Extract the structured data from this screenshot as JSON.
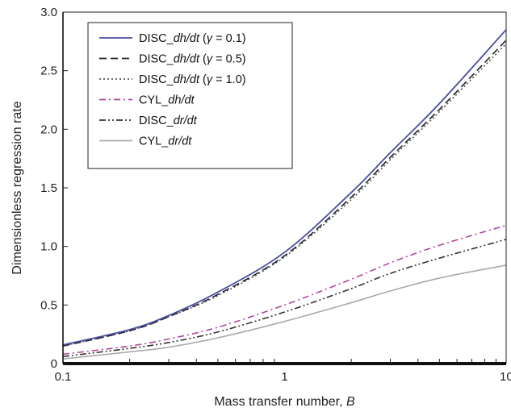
{
  "chart_data": {
    "type": "line",
    "xlabel": "Mass transfer number, B",
    "ylabel": "Dimensionless regression rate",
    "xscale": "log",
    "xlim": [
      0.1,
      10
    ],
    "ylim": [
      0,
      3.0
    ],
    "x_ticks": [
      0.1,
      1,
      10
    ],
    "x_tick_labels": [
      "0.1",
      "1",
      "10"
    ],
    "y_ticks": [
      0,
      0.5,
      1.0,
      1.5,
      2.0,
      2.5,
      3.0
    ],
    "y_tick_labels": [
      "0",
      "0.5",
      "1.0",
      "1.5",
      "2.0",
      "2.5",
      "3.0"
    ],
    "grid": false,
    "legend_position": "top-left",
    "series": [
      {
        "name": "DISC_dh/dt (γ = 0.1)",
        "label_parts": [
          "DISC_",
          "dh/dt",
          " (",
          "γ",
          " = 0.1)"
        ],
        "color": "#4a4ea0",
        "style": "solid",
        "x": [
          0.1,
          0.2,
          0.3,
          0.5,
          1,
          2,
          3,
          5,
          10
        ],
        "y": [
          0.16,
          0.29,
          0.41,
          0.61,
          0.95,
          1.46,
          1.8,
          2.22,
          2.85
        ]
      },
      {
        "name": "DISC_dh/dt (γ = 0.5)",
        "label_parts": [
          "DISC_",
          "dh/dt",
          " (",
          "γ",
          " = 0.5)"
        ],
        "color": "#222222",
        "style": "dashed",
        "x": [
          0.1,
          0.2,
          0.3,
          0.5,
          1,
          2,
          3,
          5,
          10
        ],
        "y": [
          0.15,
          0.28,
          0.4,
          0.59,
          0.92,
          1.42,
          1.76,
          2.17,
          2.76
        ]
      },
      {
        "name": "DISC_dh/dt (γ = 1.0)",
        "label_parts": [
          "DISC_",
          "dh/dt",
          " (",
          "γ",
          " = 1.0)"
        ],
        "color": "#555555",
        "style": "dotted",
        "x": [
          0.1,
          0.2,
          0.3,
          0.5,
          1,
          2,
          3,
          5,
          10
        ],
        "y": [
          0.15,
          0.28,
          0.4,
          0.58,
          0.91,
          1.4,
          1.74,
          2.15,
          2.73
        ]
      },
      {
        "name": "CYL_dh/dt",
        "label_parts": [
          "CYL_",
          "dh/dt",
          "",
          "",
          ""
        ],
        "color": "#b0479a",
        "style": "dashdot",
        "x": [
          0.1,
          0.2,
          0.3,
          0.5,
          1,
          2,
          3,
          5,
          10
        ],
        "y": [
          0.08,
          0.15,
          0.21,
          0.31,
          0.5,
          0.72,
          0.86,
          1.01,
          1.18
        ]
      },
      {
        "name": "DISC_dr/dt",
        "label_parts": [
          "DISC_",
          "dr/dt",
          "",
          "",
          ""
        ],
        "color": "#333333",
        "style": "dashdotdot",
        "x": [
          0.1,
          0.2,
          0.3,
          0.5,
          1,
          2,
          3,
          5,
          10
        ],
        "y": [
          0.06,
          0.13,
          0.18,
          0.27,
          0.44,
          0.64,
          0.77,
          0.9,
          1.06
        ]
      },
      {
        "name": "CYL_dr/dt",
        "label_parts": [
          "CYL_",
          "dr/dt",
          "",
          "",
          ""
        ],
        "color": "#aaaaaa",
        "style": "solid",
        "x": [
          0.1,
          0.2,
          0.3,
          0.5,
          1,
          2,
          3,
          5,
          10
        ],
        "y": [
          0.04,
          0.1,
          0.14,
          0.22,
          0.36,
          0.52,
          0.62,
          0.73,
          0.84
        ]
      }
    ]
  }
}
